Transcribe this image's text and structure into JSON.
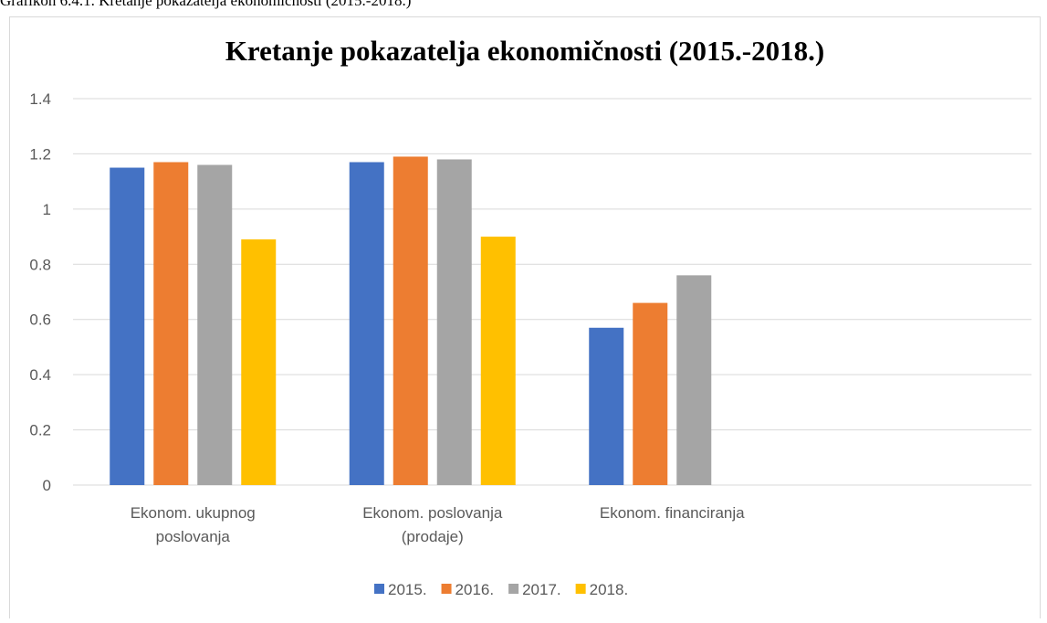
{
  "caption": "Grafikon 6.4.1. Kretanje pokazatelja ekonomičnosti (2015.-2018.)",
  "chart_data": {
    "type": "bar",
    "title": "Kretanje pokazatelja ekonomičnosti (2015.-2018.)",
    "categories": [
      "Ekonom. ukupnog poslovanja",
      "Ekonom. poslovanja (prodaje)",
      "Ekonom. financiranja",
      null
    ],
    "series": [
      {
        "name": "2015.",
        "color": "#4472c4",
        "values": [
          1.15,
          1.17,
          0.57,
          null
        ]
      },
      {
        "name": "2016.",
        "color": "#ed7d31",
        "values": [
          1.17,
          1.19,
          0.66,
          null
        ]
      },
      {
        "name": "2017.",
        "color": "#a5a5a5",
        "values": [
          1.16,
          1.18,
          0.76,
          null
        ]
      },
      {
        "name": "2018.",
        "color": "#ffc000",
        "values": [
          0.89,
          0.9,
          null,
          null
        ]
      }
    ],
    "ylim": [
      0,
      1.4
    ],
    "yticks": [
      0,
      0.2,
      0.4,
      0.6,
      0.8,
      1,
      1.2,
      1.4
    ],
    "grid": true,
    "legend": "bottom"
  }
}
